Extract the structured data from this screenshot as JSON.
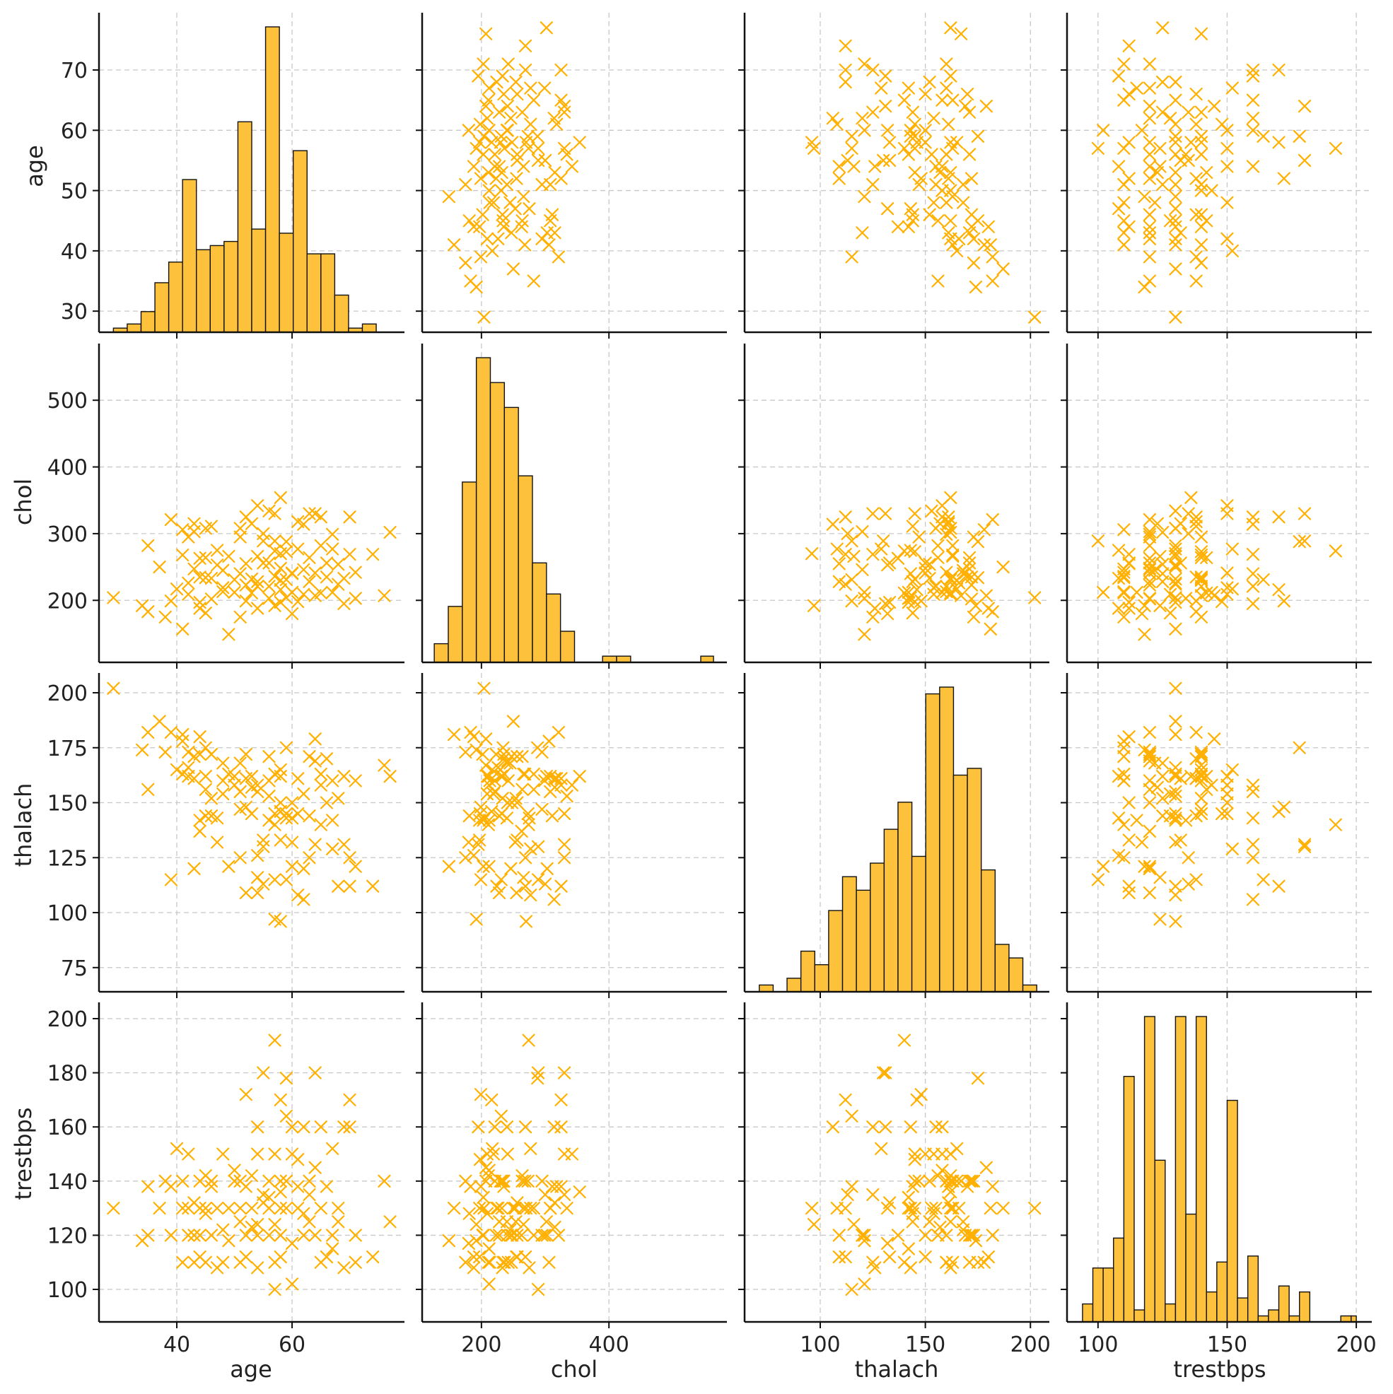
{
  "colors": {
    "accent": "#ffb000",
    "bar_fill": "#fdc13b",
    "edge": "#111111",
    "grid": "#c8c8c8"
  },
  "chart_data": {
    "type": "scatter",
    "layout": "pairplot",
    "variables": [
      "age",
      "chol",
      "thalach",
      "trestbps"
    ],
    "marker": "x",
    "grid": true,
    "title": "",
    "axes": {
      "age": {
        "range": [
          26.5,
          79.5
        ],
        "ticks": [
          30,
          40,
          50,
          60,
          70
        ],
        "x_ticks": [
          40,
          60
        ]
      },
      "chol": {
        "range": [
          107,
          585
        ],
        "ticks": [
          200,
          300,
          400,
          500
        ],
        "x_ticks": [
          200,
          400
        ]
      },
      "thalach": {
        "range": [
          64,
          209
        ],
        "ticks": [
          75,
          100,
          125,
          150,
          175,
          200
        ],
        "x_ticks": [
          100,
          150,
          200
        ]
      },
      "trestbps": {
        "range": [
          88,
          206
        ],
        "ticks": [
          100,
          120,
          140,
          160,
          180,
          200
        ],
        "x_ticks": [
          100,
          150,
          200
        ]
      }
    },
    "histograms": {
      "age": {
        "bin_edges": [
          29,
          31.4,
          33.8,
          36.2,
          38.6,
          41,
          43.4,
          45.8,
          48.2,
          50.6,
          53,
          55.4,
          57.8,
          60.2,
          62.6,
          65,
          67.4,
          69.8,
          72.2,
          74.6,
          77
        ],
        "counts": [
          1,
          2,
          5,
          12,
          17,
          37,
          20,
          21,
          22,
          51,
          25,
          74,
          24,
          44,
          19,
          19,
          9,
          1,
          2,
          0
        ]
      },
      "chol": {
        "bin_edges": [
          126,
          148,
          170,
          192,
          214,
          236,
          258,
          280,
          302,
          324,
          346,
          368,
          390,
          412,
          434,
          456,
          478,
          500,
          522,
          544,
          564
        ],
        "counts": [
          3,
          9,
          29,
          49,
          45,
          41,
          30,
          16,
          11,
          5,
          0,
          0,
          1,
          1,
          0,
          0,
          0,
          0,
          0,
          1
        ]
      },
      "thalach": {
        "bin_edges": [
          71,
          77.6,
          84.2,
          90.8,
          97.4,
          104,
          110.6,
          117.2,
          123.8,
          130.4,
          137,
          143.6,
          150.2,
          156.8,
          163.4,
          170,
          176.6,
          183.2,
          189.8,
          196.4,
          203
        ],
        "counts": [
          1,
          0,
          2,
          6,
          4,
          12,
          17,
          15,
          19,
          24,
          28,
          20,
          44,
          45,
          32,
          33,
          18,
          7,
          5,
          1
        ]
      },
      "trestbps": {
        "bin_edges": [
          94,
          98,
          102,
          106,
          110,
          114,
          118,
          122,
          126,
          130,
          134,
          138,
          142,
          146,
          150,
          154,
          158,
          162,
          166,
          170,
          174,
          178,
          182,
          186,
          190,
          194,
          198,
          200
        ],
        "counts": [
          3,
          9,
          9,
          14,
          41,
          2,
          51,
          27,
          3,
          51,
          18,
          51,
          5,
          10,
          37,
          4,
          11,
          1,
          2,
          6,
          1,
          5,
          0,
          0,
          0,
          1,
          1
        ]
      }
    },
    "points": {
      "age": [
        29,
        34,
        35,
        35,
        37,
        38,
        39,
        39,
        40,
        41,
        41,
        41,
        42,
        42,
        42,
        43,
        43,
        43,
        44,
        44,
        44,
        44,
        45,
        45,
        45,
        45,
        46,
        46,
        46,
        47,
        47,
        48,
        48,
        48,
        49,
        49,
        50,
        50,
        51,
        51,
        51,
        51,
        52,
        52,
        52,
        52,
        53,
        53,
        53,
        54,
        54,
        54,
        54,
        54,
        55,
        55,
        55,
        56,
        56,
        56,
        56,
        57,
        57,
        57,
        57,
        57,
        58,
        58,
        58,
        58,
        58,
        58,
        59,
        59,
        59,
        59,
        60,
        60,
        60,
        60,
        61,
        61,
        61,
        62,
        62,
        62,
        63,
        63,
        63,
        64,
        64,
        64,
        65,
        65,
        65,
        66,
        66,
        67,
        67,
        67,
        68,
        68,
        69,
        69,
        70,
        70,
        71,
        71,
        74,
        76,
        77
      ],
      "chol": [
        204,
        192,
        183,
        282,
        250,
        175,
        321,
        199,
        217,
        157,
        306,
        268,
        295,
        226,
        209,
        315,
        247,
        303,
        235,
        188,
        197,
        263,
        234,
        181,
        308,
        264,
        233,
        202,
        311,
        275,
        253,
        245,
        219,
        213,
        266,
        149,
        231,
        212,
        240,
        295,
        175,
        308,
        223,
        199,
        325,
        255,
        232,
        211,
        315,
        221,
        342,
        266,
        228,
        188,
        256,
        300,
        289,
        334,
        221,
        256,
        203,
        330,
        274,
        236,
        192,
        289,
        270,
        216,
        230,
        354,
        248,
        197,
        273,
        288,
        231,
        204,
        241,
        212,
        240,
        180,
        318,
        277,
        198,
        246,
        314,
        209,
        264,
        330,
        228,
        330,
        207,
        241,
        325,
        211,
        282,
        256,
        235,
        299,
        212,
        277,
        254,
        224,
        195,
        233,
        269,
        325,
        242,
        203,
        269,
        207,
        302
      ],
      "thalach": [
        202,
        174,
        182,
        156,
        187,
        173,
        182,
        115,
        165,
        181,
        178,
        163,
        173,
        166,
        162,
        161,
        171,
        120,
        172,
        180,
        142,
        137,
        175,
        144,
        162,
        156,
        152,
        172,
        144,
        143,
        132,
        168,
        154,
        160,
        163,
        121,
        162,
        158,
        168,
        147,
        125,
        155,
        172,
        148,
        161,
        109,
        145,
        162,
        157,
        155,
        158,
        116,
        109,
        126,
        133,
        113,
        130,
        153,
        160,
        171,
        142,
        145,
        140,
        163,
        97,
        115,
        96,
        146,
        165,
        162,
        150,
        133,
        145,
        175,
        115,
        143,
        150,
        121,
        143,
        132,
        161,
        108,
        145,
        120,
        106,
        154,
        171,
        125,
        144,
        131,
        179,
        169,
        158,
        140,
        163,
        150,
        170,
        160,
        142,
        129,
        152,
        112,
        131,
        162,
        125,
        112,
        160,
        121,
        112,
        167,
        162
      ],
      "trestbps": [
        130,
        118,
        138,
        120,
        130,
        140,
        120,
        138,
        152,
        130,
        110,
        140,
        120,
        130,
        150,
        132,
        110,
        120,
        140,
        112,
        130,
        120,
        110,
        128,
        130,
        142,
        140,
        120,
        138,
        108,
        130,
        122,
        150,
        110,
        130,
        118,
        140,
        144,
        125,
        140,
        110,
        130,
        120,
        172,
        138,
        112,
        130,
        142,
        123,
        160,
        150,
        124,
        120,
        108,
        132,
        135,
        180,
        130,
        140,
        120,
        134,
        150,
        192,
        110,
        124,
        100,
        130,
        170,
        140,
        136,
        120,
        112,
        140,
        178,
        164,
        130,
        150,
        102,
        160,
        117,
        138,
        130,
        148,
        120,
        160,
        128,
        140,
        135,
        125,
        180,
        145,
        120,
        160,
        110,
        130,
        112,
        138,
        120,
        115,
        152,
        125,
        130,
        160,
        108,
        160,
        170,
        110,
        120,
        112,
        140,
        125
      ]
    }
  }
}
